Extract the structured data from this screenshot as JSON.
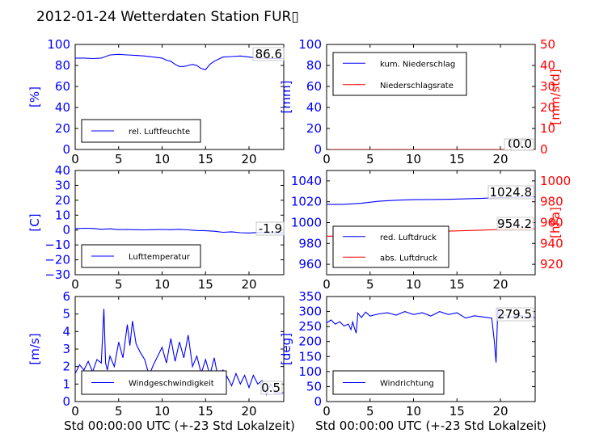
{
  "title": "2012-01-24 Wetterdaten Station FUR▯",
  "chart_data": [
    {
      "type": "line",
      "id": "humidity",
      "ylabel": "[%]",
      "ylim": [
        0,
        100
      ],
      "yticks": [
        "0",
        "20",
        "40",
        "60",
        "80",
        "100"
      ],
      "xlim": [
        0,
        24
      ],
      "xticks": [
        "0",
        "5",
        "10",
        "15",
        "20"
      ],
      "xlabel": "",
      "legend": "bottom-left",
      "series": [
        {
          "name": "rel. Luftfeuchte",
          "color": "#0000ff",
          "x": [
            0,
            1,
            2,
            3,
            4,
            5,
            6,
            7,
            8,
            9,
            10,
            10.5,
            11,
            11.5,
            12,
            12.5,
            13,
            13.5,
            14,
            14.5,
            15,
            15.5,
            16,
            17,
            18,
            19,
            20,
            21,
            22,
            23,
            24
          ],
          "y": [
            87,
            87,
            86.5,
            87,
            90,
            90.5,
            90,
            89.5,
            89,
            88,
            87,
            85,
            84,
            81,
            79,
            79,
            80,
            81,
            80,
            77,
            76,
            81,
            84,
            88,
            88.5,
            89,
            88,
            87,
            86.5,
            86.6,
            86.6
          ]
        }
      ],
      "value_label": "86.6"
    },
    {
      "type": "line",
      "id": "precipitation",
      "ylabel": "[mm]",
      "ylim": [
        0,
        100
      ],
      "yticks": [
        "0",
        "20",
        "40",
        "60",
        "80",
        "100"
      ],
      "y2label": "[mm/std]",
      "y2lim": [
        0,
        50
      ],
      "y2ticks": [
        "0",
        "10",
        "20",
        "30",
        "40",
        "50"
      ],
      "xlim": [
        0,
        24
      ],
      "xticks": [
        "0",
        "5",
        "10",
        "15",
        "20"
      ],
      "xlabel": "",
      "legend": "top-left",
      "series": [
        {
          "name": "kum. Niederschlag",
          "color": "#0000ff",
          "axis": "left",
          "x": [
            0,
            24
          ],
          "y": [
            0,
            0
          ]
        },
        {
          "name": "Niederschlagsrate",
          "color": "#ff0000",
          "axis": "right",
          "x": [
            0,
            24
          ],
          "y": [
            0,
            0
          ]
        }
      ],
      "value_labels": [
        "0.0",
        "0.0"
      ]
    },
    {
      "type": "line",
      "id": "temperature",
      "ylabel": "[C]",
      "ylim": [
        -30,
        40
      ],
      "yticks": [
        "−30",
        "−20",
        "−10",
        "0",
        "10",
        "20",
        "30",
        "40"
      ],
      "xlim": [
        0,
        24
      ],
      "xticks": [
        "0",
        "5",
        "10",
        "15",
        "20"
      ],
      "xlabel": "",
      "legend": "bottom-left",
      "series": [
        {
          "name": "Lufttemperatur",
          "color": "#0000ff",
          "x": [
            0,
            1,
            2,
            3,
            4,
            5,
            6,
            7,
            8,
            9,
            10,
            11,
            12,
            13,
            14,
            15,
            16,
            17,
            18,
            19,
            20,
            21,
            22,
            23,
            24
          ],
          "y": [
            1,
            1.2,
            1.1,
            0.5,
            0.8,
            0.3,
            0.4,
            0.2,
            0.1,
            0.3,
            0.4,
            0.2,
            0.5,
            0.1,
            -0.3,
            -0.5,
            -0.8,
            -1.5,
            -1.2,
            -1.8,
            -2.0,
            -1.6,
            -1.9,
            -1.9,
            -1.9
          ]
        }
      ],
      "value_label": "-1.9"
    },
    {
      "type": "line",
      "id": "pressure",
      "ylabel": "",
      "ylim": [
        950,
        1050
      ],
      "yticks": [
        "960",
        "980",
        "1000",
        "1020",
        "1040"
      ],
      "y2label": "[hPa]",
      "y2lim": [
        910,
        1010
      ],
      "y2ticks": [
        "920",
        "940",
        "960",
        "980",
        "1000"
      ],
      "xlim": [
        0,
        24
      ],
      "xticks": [
        "0",
        "5",
        "10",
        "15",
        "20"
      ],
      "xlabel": "",
      "legend": "bottom-left",
      "series": [
        {
          "name": "red. Luftdruck",
          "color": "#0000ff",
          "axis": "left",
          "x": [
            0,
            2,
            4,
            6,
            8,
            10,
            12,
            14,
            16,
            18,
            20,
            22,
            24
          ],
          "y": [
            1017.5,
            1017.5,
            1018.5,
            1020.5,
            1021.5,
            1022,
            1022.2,
            1022.3,
            1022.8,
            1023.3,
            1024,
            1024.5,
            1024.8
          ]
        },
        {
          "name": "abs. Luftdruck",
          "color": "#ff0000",
          "axis": "right",
          "x": [
            0,
            2,
            4,
            6,
            8,
            10,
            12,
            14,
            16,
            18,
            20,
            22,
            24
          ],
          "y": [
            947,
            947,
            947.5,
            949,
            950.5,
            951,
            951.5,
            951.8,
            952.3,
            952.8,
            953.4,
            953.9,
            954.2
          ]
        }
      ],
      "value_labels": [
        "1024.8",
        "954.2"
      ]
    },
    {
      "type": "line",
      "id": "windspeed",
      "ylabel": "[m/s]",
      "ylim": [
        0,
        6
      ],
      "yticks": [
        "0",
        "1",
        "2",
        "3",
        "4",
        "5",
        "6"
      ],
      "xlim": [
        0,
        24
      ],
      "xticks": [
        "0",
        "5",
        "10",
        "15",
        "20"
      ],
      "xlabel": "Std 00:00:00 UTC (+-23 Std Lokalzeit)",
      "legend": "bottom-center",
      "series": [
        {
          "name": "Windgeschwindigkeit",
          "color": "#0000ff",
          "x": [
            0,
            0.5,
            1,
            1.5,
            2,
            2.5,
            3,
            3.3,
            3.5,
            3.7,
            4,
            4.5,
            5,
            5.5,
            6,
            6.3,
            6.6,
            7,
            7.5,
            8,
            8.5,
            9,
            9.5,
            10,
            10.5,
            11,
            11.5,
            12,
            12.5,
            13,
            13.5,
            14,
            14.5,
            15,
            15.5,
            16,
            16.5,
            17,
            17.5,
            18,
            18.5,
            19,
            19.5,
            20,
            20.5,
            21,
            21.5,
            22,
            22.5,
            23,
            24
          ],
          "y": [
            1.6,
            2.1,
            1.8,
            2.3,
            1.7,
            2.4,
            2.2,
            5.3,
            2.2,
            1.8,
            2.6,
            2.0,
            3.4,
            2.5,
            4.4,
            3.2,
            4.6,
            3.3,
            2.8,
            2.4,
            1.5,
            2.1,
            2.6,
            3.1,
            2.2,
            3.6,
            2.3,
            3.4,
            2.5,
            3.8,
            2.0,
            2.6,
            1.6,
            2.4,
            1.5,
            2.5,
            1.2,
            1.8,
            1.4,
            0.9,
            1.6,
            1.0,
            1.5,
            0.8,
            1.5,
            1.0,
            1.2,
            0.4,
            1.0,
            0.5,
            0.5
          ]
        }
      ],
      "value_label": "0.5"
    },
    {
      "type": "line",
      "id": "winddirection",
      "ylabel": "[deg]",
      "ylim": [
        0,
        350
      ],
      "yticks": [
        "0",
        "50",
        "100",
        "150",
        "200",
        "250",
        "300",
        "350"
      ],
      "xlim": [
        0,
        24
      ],
      "xticks": [
        "0",
        "5",
        "10",
        "15",
        "20"
      ],
      "xlabel": "Std 00:00:00 UTC (+-23 Std Lokalzeit)",
      "legend": "bottom-left",
      "series": [
        {
          "name": "Windrichtung",
          "color": "#0000ff",
          "x": [
            0,
            0.5,
            1,
            1.5,
            2,
            2.5,
            2.8,
            3,
            3.2,
            3.4,
            3.6,
            4,
            4.5,
            5,
            6,
            7,
            8,
            9,
            10,
            11,
            12,
            13,
            14,
            15,
            16,
            17,
            18,
            19,
            19.3,
            19.5,
            19.7,
            20,
            20.5,
            21,
            22,
            23,
            24
          ],
          "y": [
            262,
            272,
            258,
            266,
            252,
            258,
            240,
            265,
            245,
            228,
            295,
            280,
            298,
            285,
            292,
            296,
            288,
            300,
            290,
            296,
            285,
            300,
            290,
            296,
            278,
            286,
            282,
            278,
            200,
            130,
            310,
            275,
            290,
            280,
            288,
            282,
            279.5
          ]
        }
      ],
      "value_label": "279.5"
    }
  ]
}
